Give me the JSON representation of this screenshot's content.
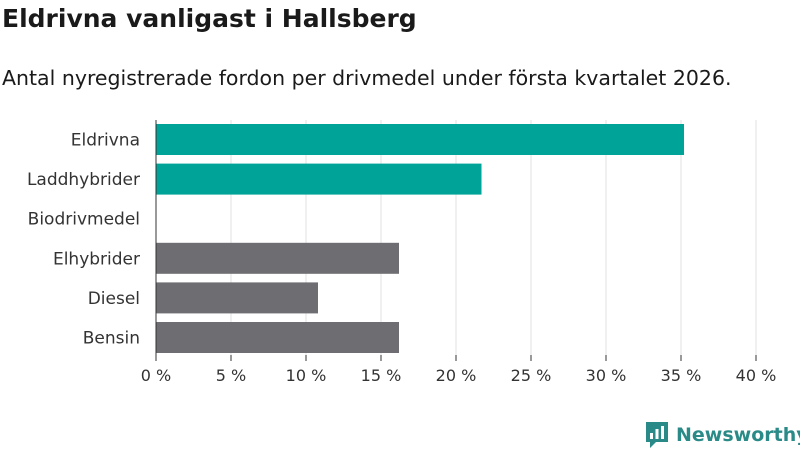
{
  "header": {
    "title": "Eldrivna vanligast i Hallsberg",
    "subtitle": "Antal nyregistrerade fordon per drivmedel under första kvartalet 2026."
  },
  "brand": {
    "name": "Newsworthy",
    "icon": "newsworthy-logo-icon"
  },
  "colors": {
    "highlight": "#00a398",
    "other": "#6d6d72",
    "grid": "#e0e0e0",
    "axis": "#333333"
  },
  "chart_data": {
    "type": "bar",
    "orientation": "horizontal",
    "categories": [
      "Eldrivna",
      "Laddhybrider",
      "Biodrivmedel",
      "Elhybrider",
      "Diesel",
      "Bensin"
    ],
    "values": [
      35.2,
      21.7,
      0,
      16.2,
      10.8,
      16.2
    ],
    "highlighted": [
      true,
      true,
      false,
      false,
      false,
      false
    ],
    "xlim": [
      0,
      40
    ],
    "xticks": [
      0,
      5,
      10,
      15,
      20,
      25,
      30,
      35,
      40
    ],
    "xtick_labels": [
      "0 %",
      "5 %",
      "10 %",
      "15 %",
      "20 %",
      "25 %",
      "30 %",
      "35 %",
      "40 %"
    ],
    "title": "Eldrivna vanligast i Hallsberg",
    "xlabel": "",
    "ylabel": "",
    "grid": true
  }
}
